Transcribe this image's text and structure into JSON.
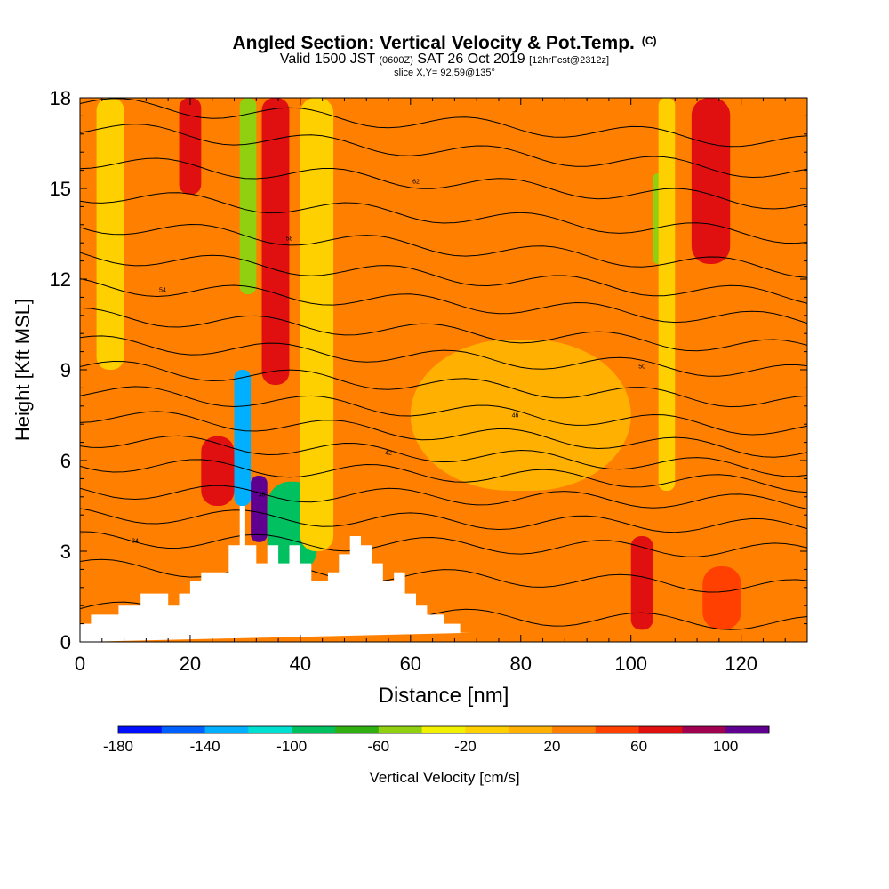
{
  "title": {
    "main": "Angled Section: Vertical Velocity & Pot.Temp.",
    "main_tag": "(C)",
    "valid_prefix": "Valid 1500 JST",
    "valid_z": "(0600Z)",
    "valid_date": "SAT 26 Oct 2019",
    "valid_fcst": "[12hrFcst@2312z]",
    "slice": "slice X,Y= 92,59@135°"
  },
  "chart_data": {
    "type": "heatmap",
    "xlabel": "Distance [nm]",
    "ylabel": "Height [Kft MSL]",
    "xlim": [
      0,
      132
    ],
    "ylim": [
      0,
      18
    ],
    "xticks": [
      0,
      20,
      40,
      60,
      80,
      100,
      120
    ],
    "yticks": [
      0,
      3,
      6,
      9,
      12,
      15,
      18
    ],
    "grid": false,
    "colorbar": {
      "label": "Vertical Velocity [cm/s]",
      "ticks": [
        -180,
        -140,
        -100,
        -60,
        -20,
        20,
        60,
        100
      ],
      "range": [
        -180,
        120
      ],
      "step": 20,
      "colors": [
        "#0010ff",
        "#0060ff",
        "#00b0ff",
        "#00e0d0",
        "#00c060",
        "#30b010",
        "#90d010",
        "#f0f000",
        "#ffd000",
        "#ffb000",
        "#ff8000",
        "#ff4000",
        "#e01010",
        "#a00050",
        "#600090"
      ]
    },
    "terrain_profile": {
      "x": [
        0,
        2,
        2,
        7,
        7,
        11,
        11,
        16,
        16,
        18,
        18,
        20,
        20,
        22,
        22,
        27,
        27,
        29,
        29,
        30,
        30,
        32,
        32,
        34,
        34,
        36,
        36,
        38,
        38,
        40,
        40,
        42,
        42,
        45,
        45,
        47,
        47,
        49,
        49,
        51,
        51,
        53,
        53,
        55,
        55,
        57,
        57,
        59,
        59,
        61,
        61,
        63,
        63,
        66,
        66,
        69,
        69,
        71,
        71,
        132
      ],
      "y": [
        0.6,
        0.6,
        0.9,
        0.9,
        1.2,
        1.2,
        1.6,
        1.6,
        1.2,
        1.2,
        1.6,
        1.6,
        2.0,
        2.0,
        2.3,
        2.3,
        3.2,
        3.2,
        4.5,
        4.5,
        3.2,
        3.2,
        2.6,
        2.6,
        3.2,
        3.2,
        2.6,
        2.6,
        3.2,
        3.2,
        2.6,
        2.6,
        2.0,
        2.0,
        2.3,
        2.3,
        2.9,
        2.9,
        3.5,
        3.5,
        3.2,
        3.2,
        2.6,
        2.6,
        2.0,
        2.0,
        2.3,
        2.3,
        1.6,
        1.6,
        1.2,
        1.2,
        0.9,
        0.9,
        0.6,
        0.6,
        0.3,
        0.3,
        0.3
      ]
    },
    "potential_temperature_contours": {
      "units": "C",
      "label_values": [
        34,
        38,
        42,
        46,
        50,
        54,
        58,
        62
      ],
      "levels": [
        {
          "y_left": 1.1,
          "y_right": 0.6
        },
        {
          "y_left": 2.5,
          "y_right": 1.8
        },
        {
          "y_left": 3.4,
          "y_right": 3.0
        },
        {
          "y_left": 4.2,
          "y_right": 3.8
        },
        {
          "y_left": 5.0,
          "y_right": 4.6
        },
        {
          "y_left": 5.9,
          "y_right": 5.2
        },
        {
          "y_left": 6.7,
          "y_right": 5.7
        },
        {
          "y_left": 7.5,
          "y_right": 6.3
        },
        {
          "y_left": 8.3,
          "y_right": 7.0
        },
        {
          "y_left": 9.1,
          "y_right": 7.9
        },
        {
          "y_left": 9.9,
          "y_right": 8.9
        },
        {
          "y_left": 10.8,
          "y_right": 9.7
        },
        {
          "y_left": 11.8,
          "y_right": 10.6
        },
        {
          "y_left": 12.8,
          "y_right": 11.4
        },
        {
          "y_left": 13.8,
          "y_right": 12.3
        },
        {
          "y_left": 14.8,
          "y_right": 13.4
        },
        {
          "y_left": 15.9,
          "y_right": 14.5
        },
        {
          "y_left": 17.0,
          "y_right": 15.5
        },
        {
          "y_left": 17.8,
          "y_right": 16.5
        }
      ]
    },
    "vertical_velocity_field": {
      "background_cm_s": 20,
      "features": [
        {
          "x_range": [
            18,
            22
          ],
          "y_range": [
            14.8,
            18
          ],
          "value": 60
        },
        {
          "x_range": [
            22,
            28
          ],
          "y_range": [
            4.5,
            6.8
          ],
          "value": 60
        },
        {
          "x_range": [
            29,
            32
          ],
          "y_range": [
            11.5,
            18
          ],
          "value": -60
        },
        {
          "x_range": [
            28,
            31
          ],
          "y_range": [
            4.5,
            9
          ],
          "value": -140
        },
        {
          "x_range": [
            31,
            34
          ],
          "y_range": [
            3.3,
            5.5
          ],
          "value": 100
        },
        {
          "x_range": [
            33,
            38
          ],
          "y_range": [
            8.5,
            18
          ],
          "value": 60
        },
        {
          "x_range": [
            34,
            43
          ],
          "y_range": [
            2.3,
            5.3
          ],
          "value": -100
        },
        {
          "x_range": [
            111,
            118
          ],
          "y_range": [
            12.5,
            18
          ],
          "value": 60
        },
        {
          "x_range": [
            104,
            106
          ],
          "y_range": [
            12.5,
            15.5
          ],
          "value": -60
        },
        {
          "x_range": [
            100,
            104
          ],
          "y_range": [
            0.4,
            3.5
          ],
          "value": 60
        },
        {
          "x_range": [
            113,
            120
          ],
          "y_range": [
            0.4,
            2.5
          ],
          "value": 40
        },
        {
          "x_range": [
            3,
            8
          ],
          "y_range": [
            9,
            18
          ],
          "value": -20
        },
        {
          "x_range": [
            40,
            46
          ],
          "y_range": [
            3,
            18
          ],
          "value": -20
        },
        {
          "x_range": [
            60,
            100
          ],
          "y_range": [
            5,
            10
          ],
          "value": 0
        },
        {
          "x_range": [
            105,
            108
          ],
          "y_range": [
            5,
            18
          ],
          "value": -20
        }
      ]
    }
  }
}
